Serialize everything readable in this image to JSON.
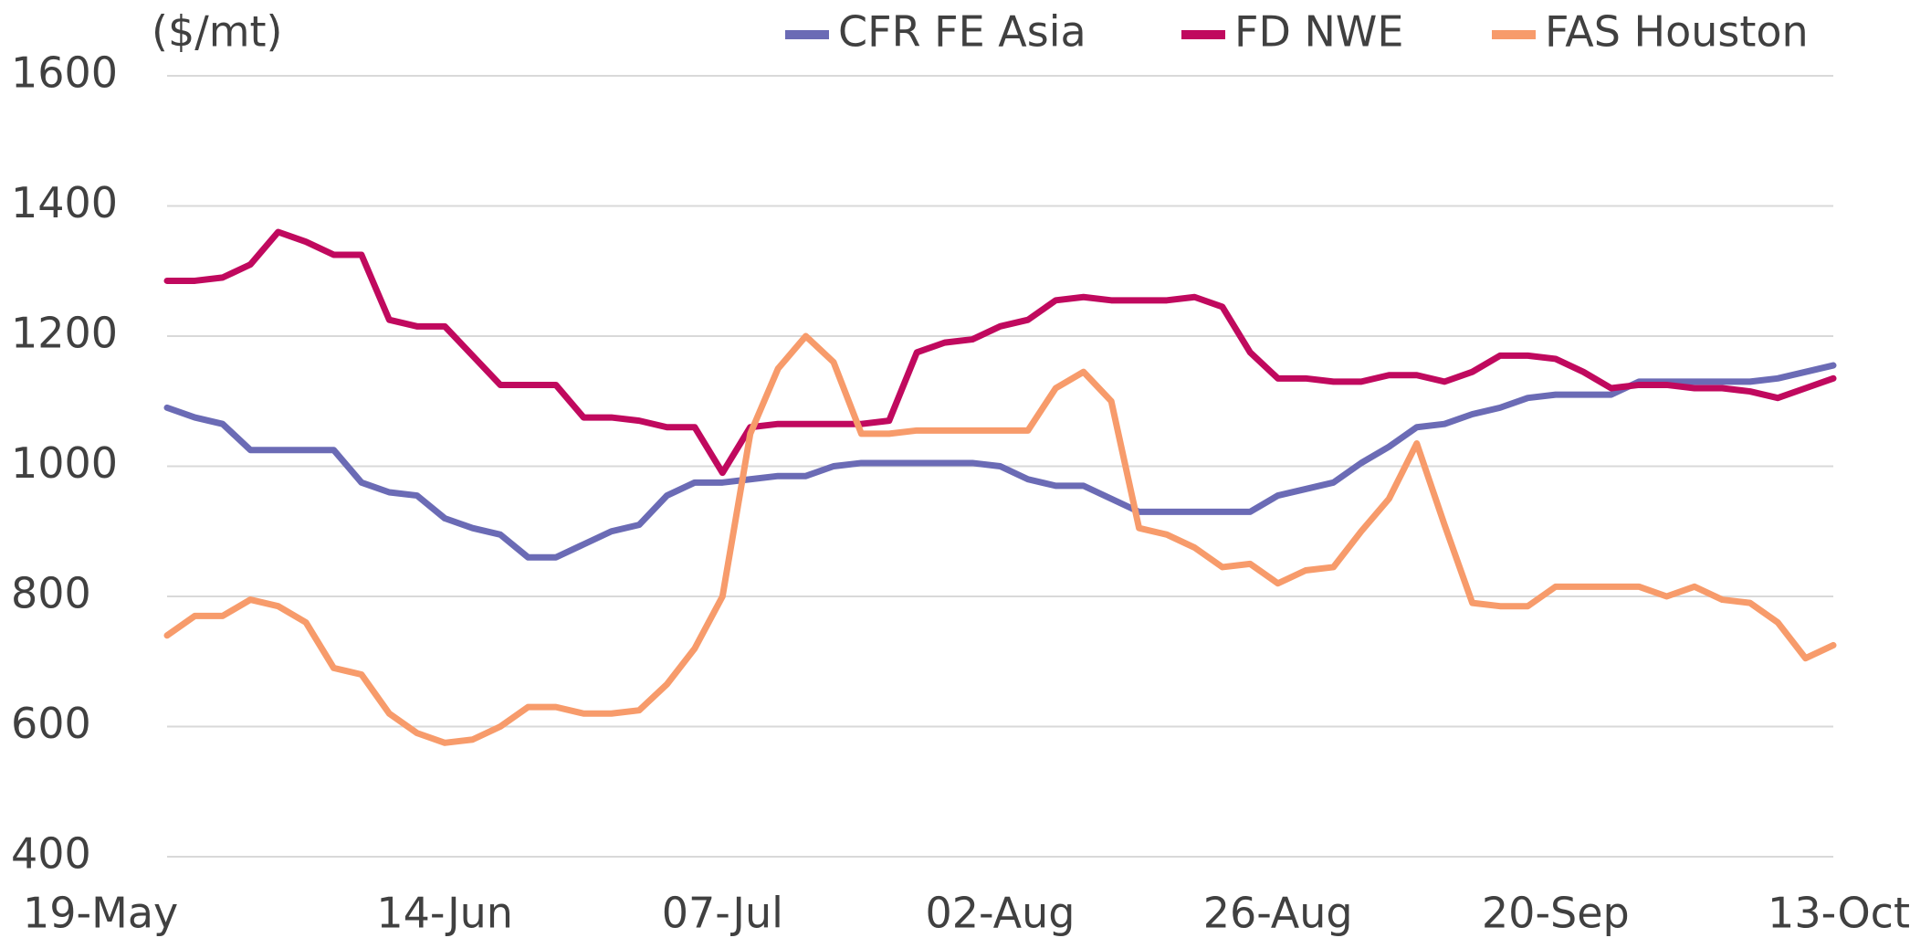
{
  "chart_data": {
    "type": "line",
    "y_axis_label": "($/mt)",
    "categories": [
      "19-May",
      null,
      null,
      null,
      null,
      null,
      null,
      null,
      null,
      null,
      "14-Jun",
      null,
      null,
      null,
      null,
      null,
      null,
      null,
      null,
      null,
      "07-Jul",
      null,
      null,
      null,
      null,
      null,
      null,
      null,
      null,
      null,
      "02-Aug",
      null,
      null,
      null,
      null,
      null,
      null,
      null,
      null,
      null,
      "26-Aug",
      null,
      null,
      null,
      null,
      null,
      null,
      null,
      null,
      null,
      "20-Sep",
      null,
      null,
      null,
      null,
      null,
      null,
      null,
      null,
      null,
      "13-Oct"
    ],
    "series": [
      {
        "name": "CFR FE Asia",
        "color": "#6b6bb5",
        "values": [
          1090,
          1075,
          1065,
          1025,
          1025,
          1025,
          1025,
          975,
          960,
          955,
          920,
          905,
          895,
          860,
          860,
          880,
          900,
          910,
          955,
          975,
          975,
          980,
          985,
          985,
          1000,
          1005,
          1005,
          1005,
          1005,
          1005,
          1000,
          980,
          970,
          970,
          950,
          930,
          930,
          930,
          930,
          930,
          955,
          965,
          975,
          1005,
          1030,
          1060,
          1065,
          1080,
          1090,
          1105,
          1110,
          1110,
          1110,
          1130,
          1130,
          1130,
          1130,
          1130,
          1135,
          1145,
          1155
        ]
      },
      {
        "name": "FD NWE",
        "color": "#c0095e",
        "values": [
          1285,
          1285,
          1290,
          1310,
          1360,
          1345,
          1325,
          1325,
          1225,
          1215,
          1215,
          1170,
          1125,
          1125,
          1125,
          1075,
          1075,
          1070,
          1060,
          1060,
          990,
          1060,
          1065,
          1065,
          1065,
          1065,
          1070,
          1175,
          1190,
          1195,
          1215,
          1225,
          1255,
          1260,
          1255,
          1255,
          1255,
          1260,
          1245,
          1175,
          1135,
          1135,
          1130,
          1130,
          1140,
          1140,
          1130,
          1145,
          1170,
          1170,
          1165,
          1145,
          1120,
          1125,
          1125,
          1120,
          1120,
          1115,
          1105,
          1120,
          1135
        ]
      },
      {
        "name": "FAS Houston",
        "color": "#f79b6b",
        "values": [
          740,
          770,
          770,
          795,
          785,
          760,
          690,
          680,
          620,
          590,
          575,
          580,
          600,
          630,
          630,
          620,
          620,
          625,
          665,
          720,
          800,
          1050,
          1150,
          1200,
          1160,
          1050,
          1050,
          1055,
          1055,
          1055,
          1055,
          1055,
          1120,
          1145,
          1100,
          905,
          895,
          875,
          845,
          850,
          820,
          840,
          845,
          900,
          950,
          1035,
          910,
          790,
          785,
          785,
          815,
          815,
          815,
          815,
          800,
          815,
          795,
          790,
          760,
          705,
          725
        ]
      }
    ],
    "ylim": [
      400,
      1600
    ],
    "yticks": [
      400,
      600,
      800,
      1000,
      1200,
      1400,
      1600
    ],
    "grid": true,
    "legend_position": "top-right"
  }
}
